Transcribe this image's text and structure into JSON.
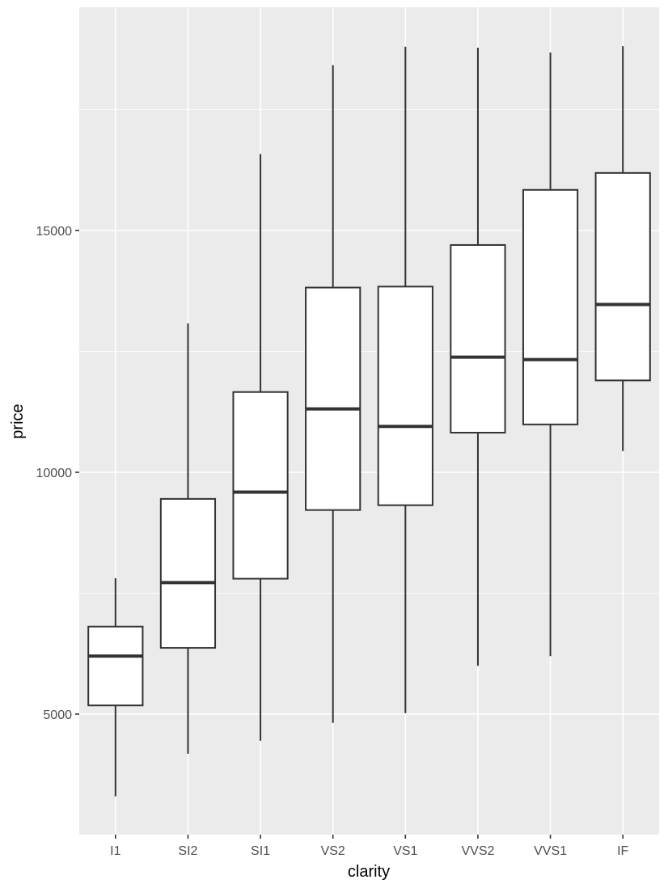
{
  "chart_data": {
    "type": "boxplot",
    "title": "",
    "xlabel": "clarity",
    "ylabel": "price",
    "ylim": [
      2300,
      19200
    ],
    "y_ticks": [
      5000,
      10000,
      15000
    ],
    "y_tick_labels": [
      "5000",
      "10000",
      "15000"
    ],
    "grid": true,
    "colors": {
      "panel_background": "#ebebeb",
      "grid_major": "#ffffff",
      "box_fill": "#ffffff",
      "box_stroke": "#333333",
      "axis_tick": "#333333",
      "tick_label": "#4d4d4d"
    },
    "categories": [
      "I1",
      "SI2",
      "SI1",
      "VS2",
      "VS1",
      "VVS2",
      "VVS1",
      "IF"
    ],
    "boxes": [
      {
        "category": "I1",
        "lower_whisker": 3300,
        "q1": 5180,
        "median": 6200,
        "q3": 6810,
        "upper_whisker": 7810
      },
      {
        "category": "SI2",
        "lower_whisker": 4180,
        "q1": 6370,
        "median": 7720,
        "q3": 9450,
        "upper_whisker": 13080
      },
      {
        "category": "SI1",
        "lower_whisker": 4450,
        "q1": 7800,
        "median": 9590,
        "q3": 11660,
        "upper_whisker": 16580
      },
      {
        "category": "VS2",
        "lower_whisker": 4820,
        "q1": 9220,
        "median": 11310,
        "q3": 13820,
        "upper_whisker": 18420
      },
      {
        "category": "VS1",
        "lower_whisker": 5020,
        "q1": 9320,
        "median": 10950,
        "q3": 13840,
        "upper_whisker": 18800
      },
      {
        "category": "VVS2",
        "lower_whisker": 6000,
        "q1": 10820,
        "median": 12380,
        "q3": 14700,
        "upper_whisker": 18780
      },
      {
        "category": "VVS1",
        "lower_whisker": 6200,
        "q1": 10990,
        "median": 12330,
        "q3": 15840,
        "upper_whisker": 18680
      },
      {
        "category": "IF",
        "lower_whisker": 10440,
        "q1": 11900,
        "median": 13470,
        "q3": 16190,
        "upper_whisker": 18810
      }
    ]
  }
}
